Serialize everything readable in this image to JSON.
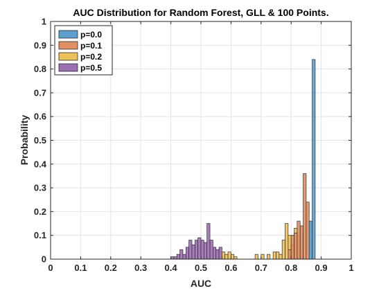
{
  "chart_data": {
    "type": "bar",
    "title": "AUC Distribution for Random Forest, GLL & 100 Points.",
    "xlabel": "AUC",
    "ylabel": "Probability",
    "xlim": [
      0,
      1
    ],
    "ylim": [
      0,
      1
    ],
    "xticks": [
      "0",
      "0.1",
      "0.2",
      "0.3",
      "0.4",
      "0.5",
      "0.6",
      "0.7",
      "0.8",
      "0.9",
      "1"
    ],
    "yticks": [
      "0",
      "0.1",
      "0.2",
      "0.3",
      "0.4",
      "0.5",
      "0.6",
      "0.7",
      "0.8",
      "0.9",
      "1"
    ],
    "grid": true,
    "legend_position": "top-left",
    "bin_width": 0.01,
    "series": [
      {
        "name": "p=0.5",
        "color": "#9c6fb3",
        "bins": [
          {
            "x": 0.4,
            "y": 0.01
          },
          {
            "x": 0.41,
            "y": 0.01
          },
          {
            "x": 0.42,
            "y": 0.02
          },
          {
            "x": 0.43,
            "y": 0.04
          },
          {
            "x": 0.44,
            "y": 0.02
          },
          {
            "x": 0.45,
            "y": 0.05
          },
          {
            "x": 0.46,
            "y": 0.08
          },
          {
            "x": 0.47,
            "y": 0.06
          },
          {
            "x": 0.48,
            "y": 0.08
          },
          {
            "x": 0.49,
            "y": 0.09
          },
          {
            "x": 0.5,
            "y": 0.08
          },
          {
            "x": 0.51,
            "y": 0.07
          },
          {
            "x": 0.52,
            "y": 0.15
          },
          {
            "x": 0.53,
            "y": 0.08
          },
          {
            "x": 0.54,
            "y": 0.05
          },
          {
            "x": 0.55,
            "y": 0.04
          },
          {
            "x": 0.56,
            "y": 0.05
          },
          {
            "x": 0.57,
            "y": 0.01
          }
        ]
      },
      {
        "name": "p=0.2",
        "color": "#efc15a",
        "bins": [
          {
            "x": 0.57,
            "y": 0.03
          },
          {
            "x": 0.58,
            "y": 0.02
          },
          {
            "x": 0.59,
            "y": 0.03
          },
          {
            "x": 0.6,
            "y": 0.02
          },
          {
            "x": 0.61,
            "y": 0.01
          },
          {
            "x": 0.68,
            "y": 0.02
          },
          {
            "x": 0.7,
            "y": 0.02
          },
          {
            "x": 0.72,
            "y": 0.02
          },
          {
            "x": 0.74,
            "y": 0.03
          },
          {
            "x": 0.75,
            "y": 0.03
          },
          {
            "x": 0.76,
            "y": 0.02
          },
          {
            "x": 0.77,
            "y": 0.08
          },
          {
            "x": 0.78,
            "y": 0.15
          },
          {
            "x": 0.79,
            "y": 0.1
          },
          {
            "x": 0.8,
            "y": 0.06
          },
          {
            "x": 0.81,
            "y": 0.13
          },
          {
            "x": 0.82,
            "y": 0.1
          },
          {
            "x": 0.83,
            "y": 0.03
          }
        ]
      },
      {
        "name": "p=0.1",
        "color": "#e08f63",
        "bins": [
          {
            "x": 0.79,
            "y": 0.04
          },
          {
            "x": 0.8,
            "y": 0.1
          },
          {
            "x": 0.81,
            "y": 0.11
          },
          {
            "x": 0.82,
            "y": 0.16
          },
          {
            "x": 0.83,
            "y": 0.14
          },
          {
            "x": 0.84,
            "y": 0.36
          },
          {
            "x": 0.85,
            "y": 0.24
          }
        ]
      },
      {
        "name": "p=0.0",
        "color": "#5b9fd0",
        "bins": [
          {
            "x": 0.86,
            "y": 0.16
          },
          {
            "x": 0.87,
            "y": 0.84
          }
        ]
      }
    ],
    "legend": [
      "p=0.0",
      "p=0.1",
      "p=0.2",
      "p=0.5"
    ]
  }
}
